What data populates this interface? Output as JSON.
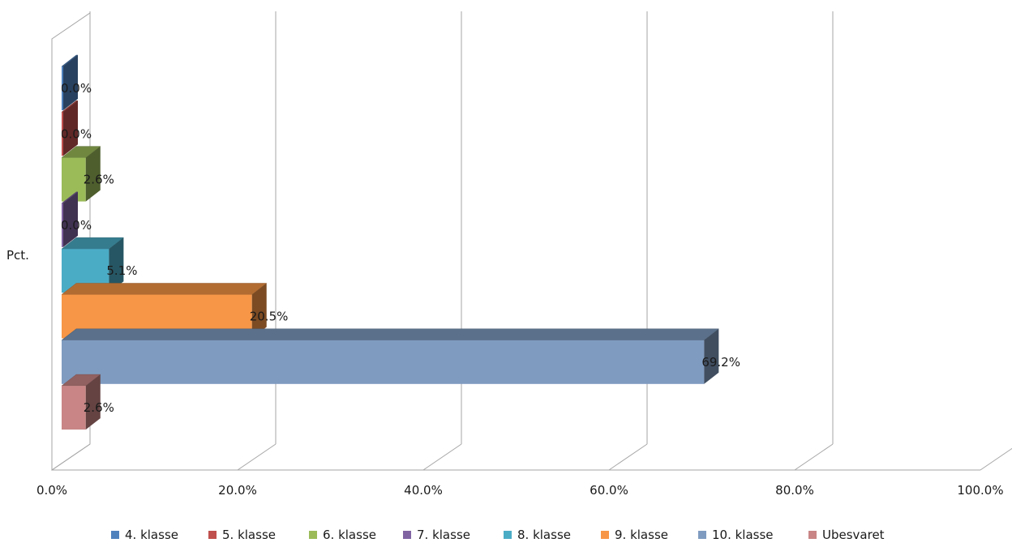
{
  "chart_data": {
    "type": "bar",
    "orientation": "horizontal",
    "three_d": true,
    "categories": [
      "Pct."
    ],
    "series": [
      {
        "name": "4. klasse",
        "values": [
          0.0
        ],
        "label": "0.0%",
        "color": "#4f81bd"
      },
      {
        "name": "5. klasse",
        "values": [
          0.0
        ],
        "label": "0.0%",
        "color": "#c0504d"
      },
      {
        "name": "6. klasse",
        "values": [
          2.6
        ],
        "label": "2.6%",
        "color": "#9bbb59"
      },
      {
        "name": "7. klasse",
        "values": [
          0.0
        ],
        "label": "0.0%",
        "color": "#8064a2"
      },
      {
        "name": "8. klasse",
        "values": [
          5.1
        ],
        "label": "5.1%",
        "color": "#4bacc6"
      },
      {
        "name": "9. klasse",
        "values": [
          20.5
        ],
        "label": "20.5%",
        "color": "#f79646"
      },
      {
        "name": "10. klasse",
        "values": [
          69.2
        ],
        "label": "69.2%",
        "color": "#7f9bc0"
      },
      {
        "name": "Ubesvaret",
        "values": [
          2.6
        ],
        "label": "2.6%",
        "color": "#c98585"
      }
    ],
    "xlim": [
      0,
      100
    ],
    "x_ticks": [
      0,
      20,
      40,
      60,
      80,
      100
    ],
    "x_tick_labels": [
      "0.0%",
      "20.0%",
      "40.0%",
      "60.0%",
      "80.0%",
      "100.0%"
    ],
    "grid": true,
    "legend_position": "bottom",
    "title": "",
    "xlabel": "",
    "ylabel": ""
  }
}
